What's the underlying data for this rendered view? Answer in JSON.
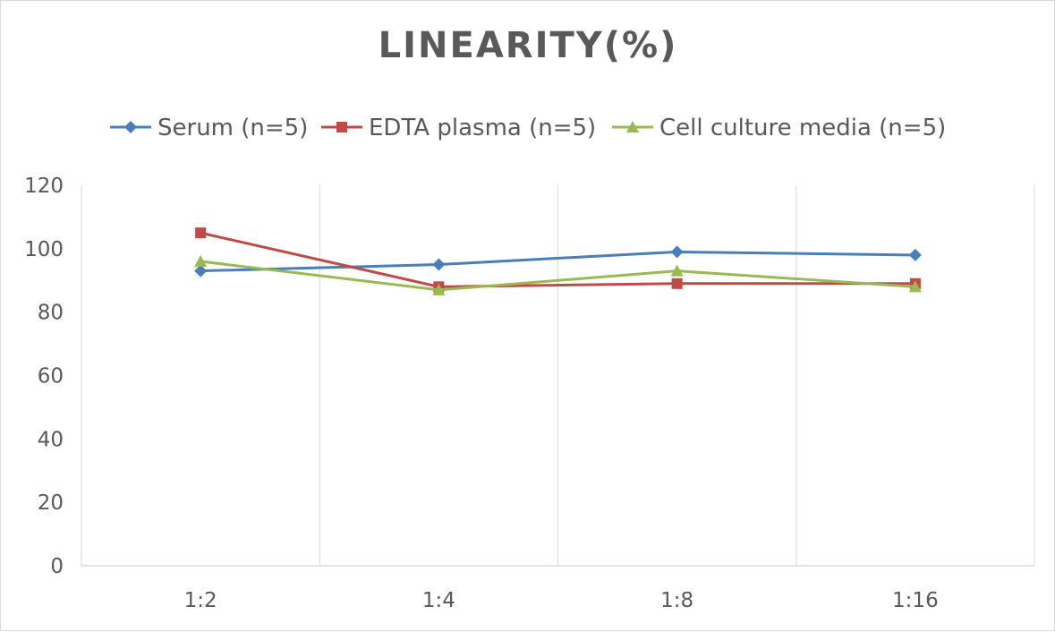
{
  "chart_data": {
    "type": "line",
    "title": "LINEARITY(%)",
    "xlabel": "",
    "ylabel": "",
    "categories": [
      "1:2",
      "1:4",
      "1:8",
      "1:16"
    ],
    "ylim": [
      0,
      120
    ],
    "yticks": [
      0,
      20,
      40,
      60,
      80,
      100,
      120
    ],
    "grid": "vertical",
    "legend_position": "top",
    "series": [
      {
        "name": "Serum (n=5)",
        "values": [
          93,
          95,
          99,
          98
        ],
        "color": "#4a7ebb",
        "marker": "diamond"
      },
      {
        "name": "EDTA plasma (n=5)",
        "values": [
          105,
          88,
          89,
          89
        ],
        "color": "#be4b48",
        "marker": "square"
      },
      {
        "name": "Cell culture media (n=5)",
        "values": [
          96,
          87,
          93,
          88
        ],
        "color": "#98b954",
        "marker": "triangle"
      }
    ]
  }
}
